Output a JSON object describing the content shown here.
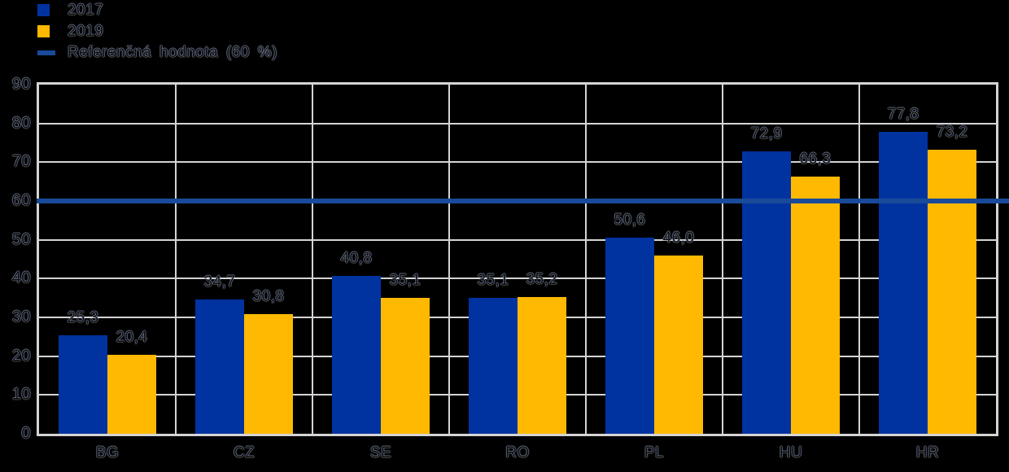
{
  "background_color": "#000000",
  "legend": {
    "items": [
      {
        "label": "2017",
        "swatch": "square",
        "color": "#0033A0"
      },
      {
        "label": "2019",
        "swatch": "square",
        "color": "#FFB900"
      },
      {
        "label": "Referenčná hodnota (60 %)",
        "swatch": "line",
        "color": "#1A4A9A"
      }
    ]
  },
  "chart_data": {
    "type": "bar",
    "categories": [
      "BG",
      "CZ",
      "SE",
      "RO",
      "PL",
      "HU",
      "HR"
    ],
    "series": [
      {
        "name": "2017",
        "color": "#0033A0",
        "values": [
          25.3,
          34.7,
          40.8,
          35.1,
          50.6,
          72.9,
          77.8
        ]
      },
      {
        "name": "2019",
        "color": "#FFB900",
        "values": [
          20.4,
          30.8,
          35.1,
          35.2,
          46.0,
          66.3,
          73.2
        ]
      }
    ],
    "data_labels": {
      "2017": [
        "25,3",
        "34,7",
        "40,8",
        "35,1",
        "50,6",
        "72,9",
        "77,8"
      ],
      "2019": [
        "20,4",
        "30,8",
        "35,1",
        "35,2",
        "46,0",
        "66,3",
        "73,2"
      ]
    },
    "reference_line": {
      "value": 60,
      "label": "Referenčná hodnota (60 %)",
      "color": "#1A4A9A"
    },
    "title": "",
    "xlabel": "",
    "ylabel": "",
    "ylim": [
      0,
      90
    ],
    "ytick_step": 10,
    "yticks": [
      0,
      10,
      20,
      30,
      40,
      50,
      60,
      70,
      80,
      90
    ],
    "grid": true,
    "grid_color": "#D4D4D4",
    "plot_background": "#000000",
    "legend_position": "top-left",
    "decimal_separator": ","
  }
}
